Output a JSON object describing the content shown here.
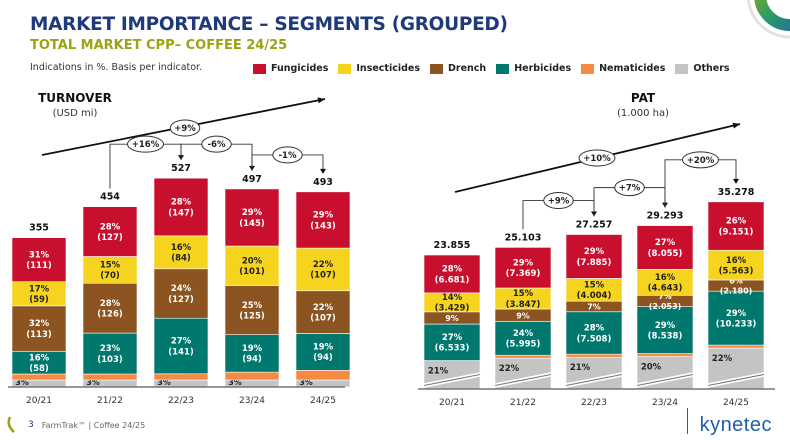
{
  "header": {
    "title": "MARKET IMPORTANCE  – SEGMENTS (GROUPED)",
    "subtitle": "TOTAL MARKET CPP– COFFEE 24/25",
    "note": "Indications in %. Basis per indicator."
  },
  "legend": [
    {
      "label": "Fungicides",
      "color": "#c8102e"
    },
    {
      "label": "Insecticides",
      "color": "#f5d31f"
    },
    {
      "label": "Drench",
      "color": "#8b5420"
    },
    {
      "label": "Herbicides",
      "color": "#00786e"
    },
    {
      "label": "Nematicides",
      "color": "#f58a42"
    },
    {
      "label": "Others",
      "color": "#c4c4c4"
    }
  ],
  "footer": {
    "page_number": "3",
    "text": "FarmTrak™ | Coffee 24/25",
    "brand": "kynetec"
  },
  "chart_data": [
    {
      "type": "bar",
      "stacked": true,
      "title": "TURNOVER",
      "subtitle": "(USD mi)",
      "categories": [
        "20/21",
        "21/22",
        "22/23",
        "23/24",
        "24/25"
      ],
      "totals": [
        "355",
        "454",
        "527",
        "497",
        "493"
      ],
      "total_values": [
        355,
        454,
        527,
        497,
        493
      ],
      "cagr_label": "+9%",
      "yoy_labels": [
        "+16%",
        "-6%",
        "-1%"
      ],
      "yoy_pairs": [
        [
          1,
          2
        ],
        [
          2,
          3
        ],
        [
          3,
          4
        ]
      ],
      "series": [
        {
          "name": "Others",
          "pct": [
            3,
            3,
            3,
            3,
            3
          ],
          "labels": [
            "3%",
            "3%",
            "3%",
            "3%",
            "3%"
          ]
        },
        {
          "name": "Nematicides",
          "pct": [
            1,
            3,
            3,
            4,
            5
          ],
          "labels": [
            "1%",
            "3%",
            "3%",
            "4%",
            "5%"
          ]
        },
        {
          "name": "Herbicides",
          "pct": [
            16,
            23,
            27,
            19,
            19
          ],
          "labels": [
            "16%\n(58)",
            "23%\n(103)",
            "27%\n(141)",
            "19%\n(94)",
            "19%\n(94)"
          ]
        },
        {
          "name": "Drench",
          "pct": [
            32,
            28,
            24,
            25,
            22
          ],
          "labels": [
            "32%\n(113)",
            "28%\n(126)",
            "24%\n(127)",
            "25%\n(125)",
            "22%\n(107)"
          ]
        },
        {
          "name": "Insecticides",
          "pct": [
            17,
            15,
            16,
            20,
            22
          ],
          "labels": [
            "17%\n(59)",
            "15%\n(70)",
            "16%\n(84)",
            "20%\n(101)",
            "22%\n(107)"
          ]
        },
        {
          "name": "Fungicides",
          "pct": [
            31,
            28,
            28,
            29,
            29
          ],
          "labels": [
            "31%\n(111)",
            "28%\n(127)",
            "28%\n(147)",
            "29%\n(145)",
            "29%\n(143)"
          ]
        }
      ]
    },
    {
      "type": "bar",
      "stacked": true,
      "title": "PAT",
      "subtitle": "(1.000 ha)",
      "categories": [
        "20/21",
        "21/22",
        "22/23",
        "23/24",
        "24/25"
      ],
      "totals": [
        "23.855",
        "25.103",
        "27.257",
        "29.293",
        "35.278"
      ],
      "total_values": [
        23855,
        25103,
        27257,
        29293,
        35278
      ],
      "cagr_label": "+10%",
      "yoy_labels": [
        "+9%",
        "+7%",
        "+20%"
      ],
      "yoy_pairs": [
        [
          1,
          2
        ],
        [
          2,
          3
        ],
        [
          3,
          4
        ]
      ],
      "axis_break": true,
      "series": [
        {
          "name": "Others",
          "pct": [
            21,
            22,
            21,
            20,
            22
          ],
          "labels": [
            "21%",
            "22%",
            "21%",
            "20%",
            "22%"
          ]
        },
        {
          "name": "Nematicides",
          "pct": [
            0,
            1,
            1,
            1,
            1
          ],
          "labels": [
            "",
            "1%",
            "1%",
            "1%",
            "1%"
          ]
        },
        {
          "name": "Herbicides",
          "pct": [
            27,
            24,
            28,
            29,
            29
          ],
          "labels": [
            "27%\n(6.533)",
            "24%\n(5.995)",
            "28%\n(7.508)",
            "29%\n(8.538)",
            "29%\n(10.233)"
          ]
        },
        {
          "name": "Drench",
          "pct": [
            9,
            9,
            7,
            7,
            6
          ],
          "labels": [
            "9%",
            "9%",
            "7%",
            "7%\n(2.053)",
            "6%\n(2.180)"
          ]
        },
        {
          "name": "Insecticides",
          "pct": [
            14,
            15,
            15,
            16,
            16
          ],
          "labels": [
            "14%\n(3.429)",
            "15%\n(3.847)",
            "15%\n(4.004)",
            "16%\n(4.643)",
            "16%\n(5.563)"
          ]
        },
        {
          "name": "Fungicides",
          "pct": [
            28,
            29,
            29,
            27,
            26
          ],
          "labels": [
            "28%\n(6.681)",
            "29%\n(7.369)",
            "29%\n(7.885)",
            "27%\n(8.055)",
            "26%\n(9.151)"
          ]
        }
      ]
    }
  ]
}
